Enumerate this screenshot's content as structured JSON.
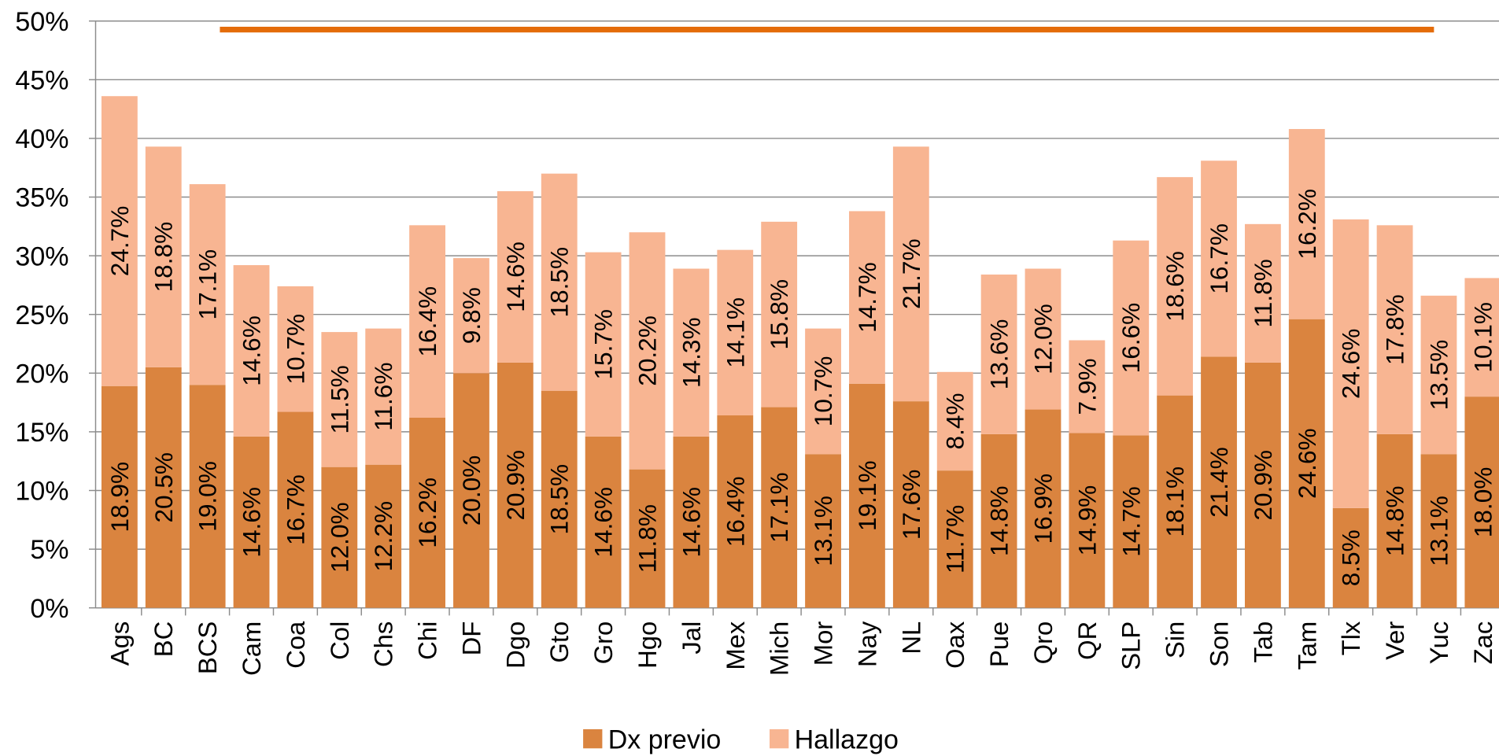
{
  "chart_data": {
    "type": "stacked_bar",
    "categories": [
      "Ags",
      "BC",
      "BCS",
      "Cam",
      "Coa",
      "Col",
      "Chs",
      "Chi",
      "DF",
      "Dgo",
      "Gto",
      "Gro",
      "Hgo",
      "Jal",
      "Mex",
      "Mich",
      "Mor",
      "Nay",
      "NL",
      "Oax",
      "Pue",
      "Qro",
      "QR",
      "SLP",
      "Sin",
      "Son",
      "Tab",
      "Tam",
      "Tlx",
      "Ver",
      "Yuc",
      "Zac"
    ],
    "series": [
      {
        "name": "Dx previo",
        "color": "#da843f",
        "values": [
          18.9,
          20.5,
          19.0,
          14.6,
          16.7,
          12.0,
          12.2,
          16.2,
          20.0,
          20.9,
          18.5,
          14.6,
          11.8,
          14.6,
          16.4,
          17.1,
          13.1,
          19.1,
          17.6,
          11.7,
          14.8,
          16.9,
          14.9,
          14.7,
          18.1,
          21.4,
          20.9,
          24.6,
          8.5,
          14.8,
          13.1,
          18.0
        ],
        "value_labels": [
          "18.9%",
          "20.5%",
          "19.0%",
          "14.6%",
          "16.7%",
          "12.0%",
          "12.2%",
          "16.2%",
          "20.0%",
          "20.9%",
          "18.5%",
          "14.6%",
          "11.8%",
          "14.6%",
          "16.4%",
          "17.1%",
          "13.1%",
          "19.1%",
          "17.6%",
          "11.7%",
          "14.8%",
          "16.9%",
          "14.9%",
          "14.7%",
          "18.1%",
          "21.4%",
          "20.9%",
          "24.6%",
          "8.5%",
          "14.8%",
          "13.1%",
          "18.0%"
        ]
      },
      {
        "name": "Hallazgo",
        "color": "#f8b592",
        "values": [
          24.7,
          18.8,
          17.1,
          14.6,
          10.7,
          11.5,
          11.6,
          16.4,
          9.8,
          14.6,
          18.5,
          15.7,
          20.2,
          14.3,
          14.1,
          15.8,
          10.7,
          14.7,
          21.7,
          8.4,
          13.6,
          12.0,
          7.9,
          16.6,
          18.6,
          16.7,
          11.8,
          16.2,
          24.6,
          17.8,
          13.5,
          10.1
        ],
        "value_labels": [
          "24.7%",
          "18.8%",
          "17.1%",
          "14.6%",
          "10.7%",
          "11.5%",
          "11.6%",
          "16.4%",
          "9.8%",
          "14.6%",
          "18.5%",
          "15.7%",
          "20.2%",
          "14.3%",
          "14.1%",
          "15.8%",
          "10.7%",
          "14.7%",
          "21.7%",
          "8.4%",
          "13.6%",
          "12.0%",
          "7.9%",
          "16.6%",
          "18.6%",
          "16.7%",
          "11.8%",
          "16.2%",
          "24.6%",
          "17.8%",
          "13.5%",
          "10.1%"
        ]
      }
    ],
    "ylim": [
      0,
      50
    ],
    "yticks": [
      {
        "value": 0,
        "label": "0%"
      },
      {
        "value": 5,
        "label": "5%"
      },
      {
        "value": 10,
        "label": "10%"
      },
      {
        "value": 15,
        "label": "15%"
      },
      {
        "value": 20,
        "label": "20%"
      },
      {
        "value": 25,
        "label": "25%"
      },
      {
        "value": 30,
        "label": "30%"
      },
      {
        "value": 35,
        "label": "35%"
      },
      {
        "value": 40,
        "label": "40%"
      },
      {
        "value": 45,
        "label": "45%"
      },
      {
        "value": 50,
        "label": "50%"
      }
    ],
    "grid": true,
    "legend": "bottom"
  }
}
